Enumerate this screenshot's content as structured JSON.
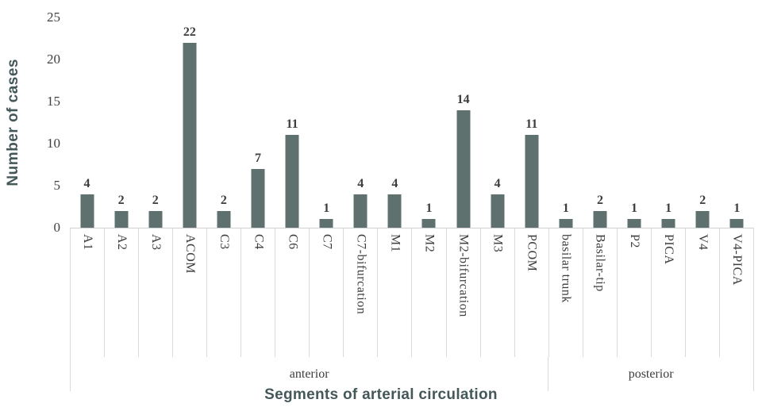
{
  "chart_data": {
    "type": "bar",
    "title": "",
    "xlabel": "Segments of arterial circulation",
    "ylabel": "Number of cases",
    "ylim": [
      0,
      25
    ],
    "yticks": [
      0,
      5,
      10,
      15,
      20,
      25
    ],
    "grid": "none",
    "legend": null,
    "bar_color": "#5e716e",
    "axis_title_color": "#44585a",
    "tick_label_color": "#404040",
    "separator_color": "#d9d9d9",
    "categories": [
      "A1",
      "A2",
      "A3",
      "ACOM",
      "C3",
      "C4",
      "C6",
      "C7",
      "C7-bifurcation",
      "M1",
      "M2",
      "M2-bifurcation",
      "M3",
      "PCOM",
      "basilar trunk",
      "Basilar-tip",
      "P2",
      "PICA",
      "V4",
      "V4-PICA"
    ],
    "values": [
      4,
      2,
      2,
      22,
      2,
      7,
      11,
      1,
      4,
      4,
      1,
      14,
      4,
      11,
      1,
      2,
      1,
      1,
      2,
      1
    ],
    "groups": [
      {
        "label": "anterior",
        "start": 0,
        "end": 13
      },
      {
        "label": "posterior",
        "start": 14,
        "end": 19
      }
    ]
  }
}
